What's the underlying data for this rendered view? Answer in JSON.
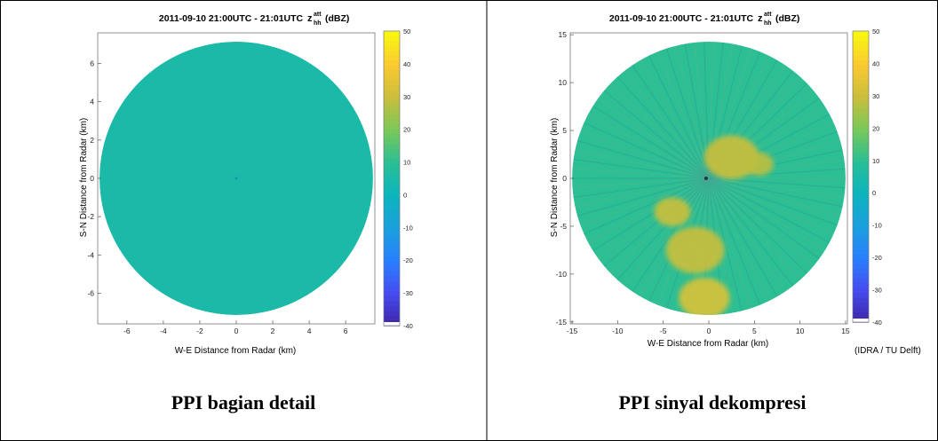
{
  "panels": [
    {
      "id": "left",
      "title_prefix": "2011-09-10 21:00UTC - 21:01UTC",
      "title_var": "z",
      "title_sup": "att",
      "title_sub": "hh",
      "title_unit": "(dBZ)",
      "xlabel": "W-E Distance from Radar (km)",
      "ylabel": "S-N Distance from Radar (km)",
      "xticks": [
        "-6",
        "-4",
        "-2",
        "0",
        "2",
        "4",
        "6"
      ],
      "yticks": [
        "6",
        "4",
        "2",
        "0",
        "-2",
        "-4",
        "-6"
      ],
      "colorbar_ticks": [
        "50",
        "40",
        "30",
        "20",
        "10",
        "0",
        "-10",
        "-20",
        "-30",
        "-40"
      ],
      "caption": "PPI bagian detail"
    },
    {
      "id": "right",
      "title_prefix": "2011-09-10 21:00UTC - 21:01UTC",
      "title_var": "z",
      "title_sup": "att",
      "title_sub": "hh",
      "title_unit": "(dBZ)",
      "xlabel": "W-E Distance from Radar (km)",
      "ylabel": "S-N Distance from Radar (km)",
      "xticks": [
        "-15",
        "-10",
        "-5",
        "0",
        "5",
        "10",
        "15"
      ],
      "yticks": [
        "15",
        "10",
        "5",
        "0",
        "-5",
        "-10",
        "-15"
      ],
      "colorbar_ticks": [
        "50",
        "40",
        "30",
        "20",
        "10",
        "0",
        "-10",
        "-20",
        "-30",
        "-40"
      ],
      "credit": "(IDRA / TU Delft)",
      "caption": "PPI sinyal dekompresi"
    }
  ],
  "colors": {
    "background_teal": "#27a6a6",
    "right_base": "#3aaa98",
    "echo_yellow": "#e8b838"
  },
  "chart_data": [
    {
      "type": "heatmap",
      "title": "2011-09-10 21:00UTC - 21:01UTC z_hh^att (dBZ)",
      "xlabel": "W-E Distance from Radar (km)",
      "ylabel": "S-N Distance from Radar (km)",
      "xlim": [
        -7.6,
        7.6
      ],
      "ylim": [
        -7.6,
        7.6
      ],
      "radius": 7.5,
      "colorbar_range": [
        -40,
        50
      ],
      "colorbar_ticks": [
        50,
        40,
        30,
        20,
        10,
        0,
        -10,
        -20,
        -30,
        -40
      ],
      "field_value": 5
    },
    {
      "type": "heatmap",
      "title": "2011-09-10 21:00UTC - 21:01UTC z_hh^att (dBZ)",
      "xlabel": "W-E Distance from Radar (km)",
      "ylabel": "S-N Distance from Radar (km)",
      "xlim": [
        -15.2,
        15.2
      ],
      "ylim": [
        -15.2,
        15.2
      ],
      "radius": 15,
      "colorbar_range": [
        -40,
        50
      ],
      "colorbar_ticks": [
        50,
        40,
        30,
        20,
        10,
        0,
        -10,
        -20,
        -30,
        -40
      ],
      "field_value": 10,
      "echo_regions": [
        {
          "cx": 2.5,
          "cy": 2.2,
          "r": 3.0,
          "value": 30
        },
        {
          "cx": -1.5,
          "cy": -7.5,
          "r": 3.2,
          "value": 30
        },
        {
          "cx": -4.0,
          "cy": -3.5,
          "r": 2.0,
          "value": 30
        },
        {
          "cx": -0.5,
          "cy": -12.5,
          "r": 2.8,
          "value": 33
        },
        {
          "cx": 5.5,
          "cy": 1.5,
          "r": 1.6,
          "value": 28
        }
      ]
    }
  ]
}
